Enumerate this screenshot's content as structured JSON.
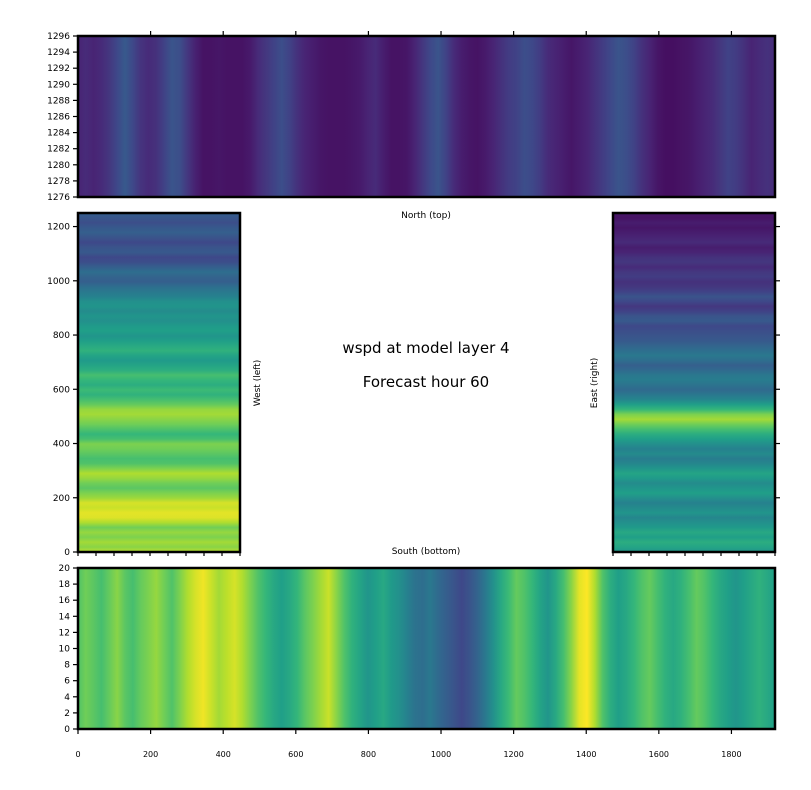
{
  "title": {
    "line1": "wspd at model layer 4",
    "line2": "Forecast hour 60"
  },
  "colors": {
    "viridis": [
      "#440154",
      "#482878",
      "#3e4989",
      "#31688e",
      "#26828e",
      "#1f9e89",
      "#35b779",
      "#6ece58",
      "#b5de2b",
      "#fde725"
    ]
  },
  "chart_data": [
    {
      "type": "heatmap",
      "name": "north",
      "label": "North (top)",
      "xlim": [
        0,
        1920
      ],
      "ylim": [
        1276,
        1296
      ],
      "yticks": [
        "1276",
        "1278",
        "1280",
        "1282",
        "1284",
        "1286",
        "1288",
        "1290",
        "1292",
        "1294",
        "1296"
      ],
      "orientation": "columns",
      "values": [
        0.1,
        0.12,
        0.1,
        0.12,
        0.16,
        0.22,
        0.28,
        0.22,
        0.15,
        0.12,
        0.14,
        0.2,
        0.26,
        0.24,
        0.16,
        0.09,
        0.05,
        0.05,
        0.06,
        0.05,
        0.05,
        0.05,
        0.07,
        0.12,
        0.16,
        0.2,
        0.24,
        0.2,
        0.14,
        0.1,
        0.08,
        0.06,
        0.05,
        0.05,
        0.05,
        0.06,
        0.07,
        0.1,
        0.12,
        0.08,
        0.05,
        0.05,
        0.06,
        0.1,
        0.16,
        0.22,
        0.26,
        0.2,
        0.12,
        0.08,
        0.06,
        0.05,
        0.07,
        0.1,
        0.14,
        0.18,
        0.2,
        0.24,
        0.22,
        0.18,
        0.12,
        0.1,
        0.08,
        0.06,
        0.08,
        0.1,
        0.14,
        0.18,
        0.22,
        0.26,
        0.24,
        0.2,
        0.14,
        0.1,
        0.06,
        0.04,
        0.04,
        0.05,
        0.06,
        0.08,
        0.1,
        0.12,
        0.16,
        0.2,
        0.18,
        0.14,
        0.1,
        0.12,
        0.14,
        0.12
      ]
    },
    {
      "type": "heatmap",
      "name": "west",
      "label": "West (left)",
      "xlim": [
        0,
        450
      ],
      "ylim": [
        0,
        1250
      ],
      "yticks": [
        "0",
        "200",
        "400",
        "600",
        "800",
        "1000",
        "1200"
      ],
      "orientation": "rows",
      "values": [
        0.9,
        0.82,
        0.86,
        0.8,
        0.84,
        0.78,
        0.88,
        0.95,
        0.96,
        0.92,
        0.94,
        0.85,
        0.8,
        0.74,
        0.78,
        0.84,
        0.88,
        0.8,
        0.72,
        0.7,
        0.74,
        0.78,
        0.8,
        0.7,
        0.66,
        0.72,
        0.78,
        0.82,
        0.86,
        0.84,
        0.76,
        0.7,
        0.64,
        0.68,
        0.62,
        0.66,
        0.7,
        0.62,
        0.58,
        0.54,
        0.58,
        0.64,
        0.6,
        0.56,
        0.52,
        0.56,
        0.54,
        0.5,
        0.52,
        0.48,
        0.52,
        0.5,
        0.44,
        0.4,
        0.36,
        0.3,
        0.32,
        0.36,
        0.3,
        0.24,
        0.22,
        0.28,
        0.26,
        0.22,
        0.26,
        0.3,
        0.28,
        0.24,
        0.27,
        0.3
      ]
    },
    {
      "type": "heatmap",
      "name": "east",
      "label": "East (right)",
      "xlim": [
        1470,
        1920
      ],
      "ylim": [
        0,
        1250
      ],
      "yticks": [],
      "orientation": "rows",
      "values": [
        0.52,
        0.58,
        0.62,
        0.56,
        0.6,
        0.54,
        0.5,
        0.46,
        0.52,
        0.48,
        0.44,
        0.5,
        0.56,
        0.52,
        0.48,
        0.54,
        0.58,
        0.52,
        0.46,
        0.42,
        0.48,
        0.44,
        0.5,
        0.56,
        0.62,
        0.7,
        0.78,
        0.86,
        0.8,
        0.66,
        0.56,
        0.46,
        0.4,
        0.34,
        0.38,
        0.42,
        0.4,
        0.34,
        0.3,
        0.36,
        0.4,
        0.36,
        0.32,
        0.28,
        0.26,
        0.24,
        0.22,
        0.28,
        0.26,
        0.2,
        0.16,
        0.22,
        0.26,
        0.2,
        0.16,
        0.14,
        0.18,
        0.16,
        0.12,
        0.16,
        0.14,
        0.1,
        0.08,
        0.12,
        0.1,
        0.08,
        0.06,
        0.08,
        0.05,
        0.06
      ]
    },
    {
      "type": "heatmap",
      "name": "south",
      "label": "South (bottom)",
      "xlim": [
        0,
        1920
      ],
      "ylim": [
        0,
        20
      ],
      "yticks": [
        "0",
        "2",
        "4",
        "6",
        "8",
        "10",
        "12",
        "14",
        "16",
        "18",
        "20"
      ],
      "xticks": [
        "0",
        "200",
        "400",
        "600",
        "800",
        "1000",
        "1200",
        "1400",
        "1600",
        "1800"
      ],
      "orientation": "columns",
      "values": [
        0.72,
        0.78,
        0.74,
        0.7,
        0.76,
        0.82,
        0.74,
        0.7,
        0.76,
        0.8,
        0.84,
        0.78,
        0.72,
        0.8,
        0.88,
        0.94,
        0.98,
        0.92,
        0.86,
        0.9,
        0.94,
        0.88,
        0.8,
        0.72,
        0.66,
        0.6,
        0.56,
        0.6,
        0.66,
        0.74,
        0.8,
        0.86,
        0.92,
        0.82,
        0.72,
        0.64,
        0.58,
        0.52,
        0.56,
        0.6,
        0.54,
        0.5,
        0.44,
        0.38,
        0.36,
        0.4,
        0.34,
        0.3,
        0.26,
        0.22,
        0.26,
        0.32,
        0.4,
        0.5,
        0.6,
        0.68,
        0.76,
        0.72,
        0.66,
        0.58,
        0.52,
        0.6,
        0.7,
        0.82,
        0.96,
        1.0,
        0.88,
        0.72,
        0.62,
        0.56,
        0.6,
        0.66,
        0.72,
        0.76,
        0.7,
        0.64,
        0.6,
        0.64,
        0.7,
        0.76,
        0.72,
        0.66,
        0.6,
        0.56,
        0.52,
        0.56,
        0.6,
        0.64,
        0.6,
        0.56
      ]
    }
  ]
}
